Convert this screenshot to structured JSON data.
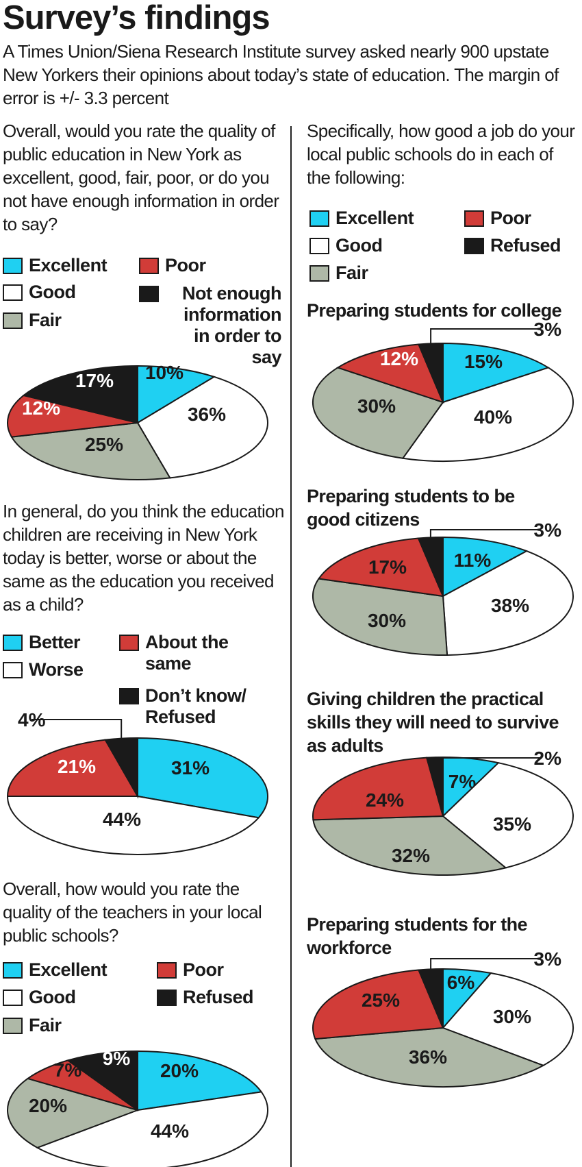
{
  "header": {
    "title": "Survey’s findings",
    "intro": "A Times Union/Siena Research Institute survey asked nearly 900 upstate New Yorkers their opinions about today’s state of education. The margin of error is +/- 3.3 percent"
  },
  "colors": {
    "excellent": "#1fd0f2",
    "good": "#ffffff",
    "fair": "#aeb8a7",
    "poor": "#d13c38",
    "none": "#1a1a1a",
    "outline": "#1a1a1a"
  },
  "legends": {
    "nyquality": [
      "Excellent",
      "Good",
      "Fair",
      "Poor",
      "Not enough information in order to say"
    ],
    "compare": [
      "Better",
      "Worse",
      "About the same",
      "Don’t know/ Refused"
    ],
    "teachers": [
      "Excellent",
      "Good",
      "Fair",
      "Poor",
      "Refused"
    ],
    "local": [
      "Excellent",
      "Good",
      "Fair",
      "Poor",
      "Refused"
    ]
  },
  "chart_data": [
    {
      "type": "pie",
      "question": "Overall, would you rate the quality of public education in New York as excellent, good, fair, poor, or do you not have enough information in order to say?",
      "categories": [
        "Excellent",
        "Good",
        "Fair",
        "Poor",
        "Not enough information in order to say"
      ],
      "values": [
        10,
        36,
        25,
        12,
        17
      ],
      "labels": [
        "10%",
        "36%",
        "25%",
        "12%",
        "17%"
      ]
    },
    {
      "type": "pie",
      "question": "In general, do you think the education children are receiving in New York today is better, worse or about the same as the education you received as a child?",
      "categories": [
        "Better",
        "Worse",
        "About the same",
        "Don’t know/ Refused"
      ],
      "values": [
        31,
        44,
        21,
        4
      ],
      "labels": [
        "31%",
        "44%",
        "21%",
        "4%"
      ]
    },
    {
      "type": "pie",
      "question": "Overall, how would you rate the quality of the teachers in your local public schools?",
      "categories": [
        "Excellent",
        "Good",
        "Fair",
        "Poor",
        "Refused"
      ],
      "values": [
        20,
        44,
        20,
        7,
        9
      ],
      "labels": [
        "20%",
        "44%",
        "20%",
        "7%",
        "9%"
      ]
    },
    {
      "type": "pie",
      "question": "Specifically, how good a job do your local public schools do in each of the following:",
      "title": "Preparing students for college",
      "categories": [
        "Excellent",
        "Good",
        "Fair",
        "Poor",
        "Refused"
      ],
      "values": [
        15,
        40,
        30,
        12,
        3
      ],
      "labels": [
        "15%",
        "40%",
        "30%",
        "12%",
        "3%"
      ]
    },
    {
      "type": "pie",
      "title": "Preparing students to be good citizens",
      "categories": [
        "Excellent",
        "Good",
        "Fair",
        "Poor",
        "Refused"
      ],
      "values": [
        11,
        38,
        30,
        17,
        3
      ],
      "labels": [
        "11%",
        "38%",
        "30%",
        "17%",
        "3%"
      ]
    },
    {
      "type": "pie",
      "title": "Giving children the practical skills they will need to survive as adults",
      "categories": [
        "Excellent",
        "Good",
        "Fair",
        "Poor",
        "Refused"
      ],
      "values": [
        7,
        35,
        32,
        24,
        2
      ],
      "labels": [
        "7%",
        "35%",
        "32%",
        "24%",
        "2%"
      ]
    },
    {
      "type": "pie",
      "title": "Preparing students for the workforce",
      "categories": [
        "Excellent",
        "Good",
        "Fair",
        "Poor",
        "Refused"
      ],
      "values": [
        6,
        30,
        36,
        25,
        3
      ],
      "labels": [
        "6%",
        "30%",
        "36%",
        "25%",
        "3%"
      ]
    }
  ]
}
